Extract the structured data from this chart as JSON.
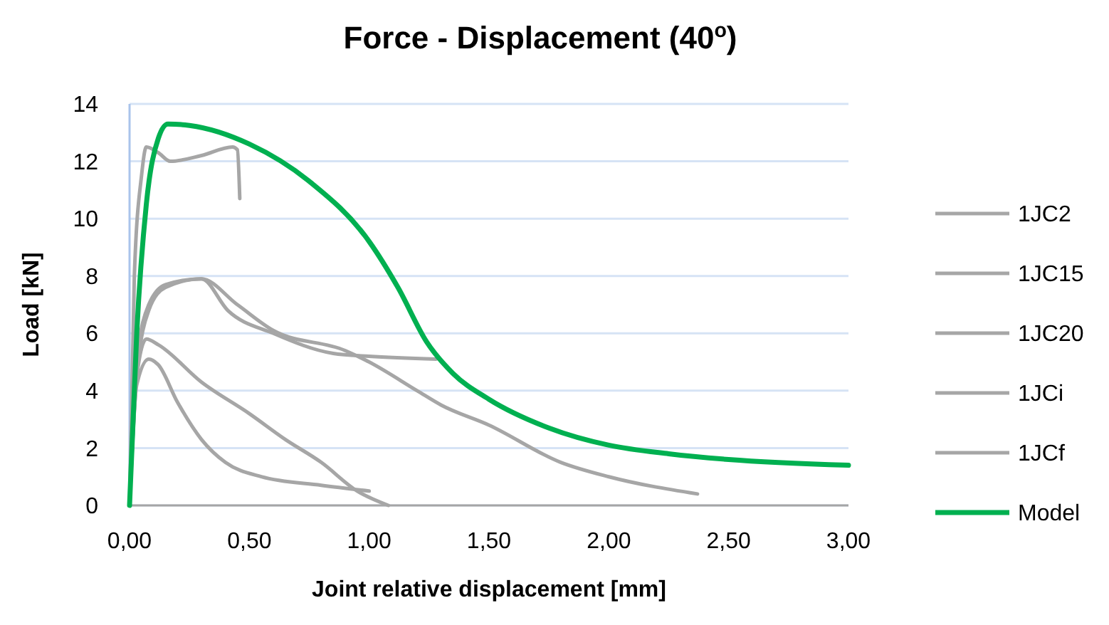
{
  "chart_data": {
    "type": "line",
    "title": "Force - Displacement (40$^{o}$)",
    "xlabel": "Joint relative displacement  [mm]",
    "ylabel": "Load [kN]",
    "xlim": [
      0,
      3
    ],
    "xticks": [
      {
        "value": 0,
        "label": "0,00"
      },
      {
        "value": 0.5,
        "label": "0,50"
      },
      {
        "value": 1,
        "label": "1,00"
      },
      {
        "value": 1.5,
        "label": "1,50"
      },
      {
        "value": 2,
        "label": "2,00"
      },
      {
        "value": 2.5,
        "label": "2,50"
      },
      {
        "value": 3,
        "label": "3,00"
      }
    ],
    "ylim": [
      0,
      14
    ],
    "yticks": [
      0,
      2,
      4,
      6,
      8,
      10,
      12,
      14
    ],
    "grid": "y",
    "legend": "right",
    "marker": "none",
    "line_style": "solid",
    "series": [
      {
        "name": "1JC2",
        "color": "#a6a6a6",
        "x": [
          0,
          0.02,
          0.05,
          0.07,
          0.12,
          0.17,
          0.3,
          0.43,
          0.45,
          0.46
        ],
        "values": [
          0,
          8,
          11.5,
          12.5,
          12.3,
          12,
          12.2,
          12.5,
          12.4,
          10.7
        ]
      },
      {
        "name": "1JC15",
        "color": "#a6a6a6",
        "x": [
          0,
          0.03,
          0.08,
          0.15,
          0.3,
          0.41,
          0.6,
          0.85,
          1.0,
          1.28
        ],
        "values": [
          0,
          4.5,
          6.8,
          7.6,
          7.9,
          6.8,
          6.0,
          5.3,
          5.2,
          5.1
        ]
      },
      {
        "name": "1JC20",
        "color": "#a6a6a6",
        "x": [
          0,
          0.03,
          0.08,
          0.15,
          0.3,
          0.45,
          0.6,
          0.9,
          1.0,
          1.2,
          1.3,
          1.5,
          1.8,
          2.0,
          2.37
        ],
        "values": [
          0,
          5,
          7.0,
          7.7,
          7.9,
          7.0,
          6.1,
          5.4,
          5.0,
          4.0,
          3.5,
          2.8,
          1.5,
          1.0,
          0.4
        ]
      },
      {
        "name": "1JCi",
        "color": "#a6a6a6",
        "x": [
          0,
          0.03,
          0.07,
          0.12,
          0.3,
          0.5,
          0.65,
          0.8,
          0.95,
          1.08
        ],
        "values": [
          0,
          4.5,
          5.8,
          5.6,
          4.3,
          3.2,
          2.3,
          1.5,
          0.5,
          0
        ]
      },
      {
        "name": "1JCf",
        "color": "#a6a6a6",
        "x": [
          0,
          0.03,
          0.08,
          0.12,
          0.2,
          0.3,
          0.4,
          0.55,
          0.8,
          1.0
        ],
        "values": [
          0,
          4.2,
          5.1,
          4.9,
          3.6,
          2.3,
          1.5,
          1.0,
          0.7,
          0.5
        ]
      },
      {
        "name": "Model",
        "color": "#00b050",
        "x": [
          0,
          0.03,
          0.07,
          0.12,
          0.16,
          0.25,
          0.5,
          0.75,
          1.0,
          1.12,
          1.24,
          1.35,
          1.5,
          1.75,
          2.0,
          2.25,
          2.5,
          3.0
        ],
        "values": [
          0,
          6,
          10.5,
          12.8,
          13.3,
          13.25,
          12.6,
          11.3,
          9.2,
          7.6,
          5.7,
          4.6,
          3.7,
          2.7,
          2.1,
          1.8,
          1.6,
          1.4
        ]
      }
    ]
  }
}
